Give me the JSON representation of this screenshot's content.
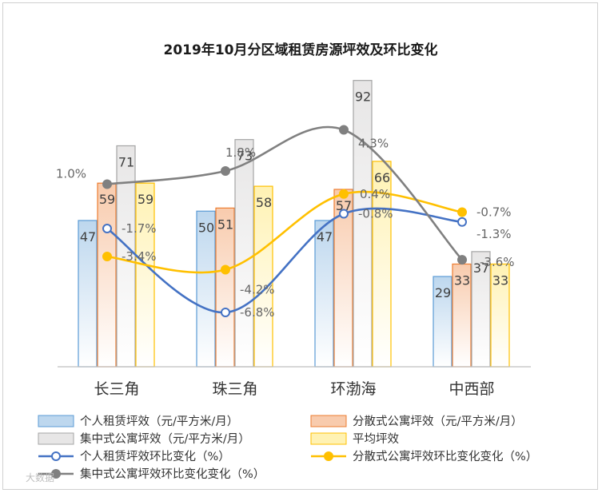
{
  "chart_data": {
    "type": "bar",
    "title": "2019年10月分区域租赁房源坪效及环比变化",
    "categories": [
      "长三角",
      "珠三角",
      "环渤海",
      "中西部"
    ],
    "ylim": [
      0,
      95
    ],
    "series": [
      {
        "name": "个人租赁坪效（元/平方米/月）",
        "kind": "bar",
        "values": [
          47,
          50,
          47,
          29
        ],
        "labels": [
          "47",
          "50",
          "47",
          "29"
        ],
        "fill": "#bdd7ee",
        "stroke": "#5b9bd5"
      },
      {
        "name": "分散式公寓坪效（元/平方米/月）",
        "kind": "bar",
        "values": [
          59,
          51,
          57,
          33
        ],
        "labels": [
          "59",
          "51",
          "57",
          "33"
        ],
        "fill": "#f8cbad",
        "stroke": "#ed7d31"
      },
      {
        "name": "集中式公寓坪效（元/平方米/月）",
        "kind": "bar",
        "values": [
          71,
          73,
          92,
          37
        ],
        "labels": [
          "71",
          "73",
          "92",
          "37"
        ],
        "fill": "#e7e6e6",
        "stroke": "#a5a5a5"
      },
      {
        "name": "平均坪效",
        "kind": "bar",
        "values": [
          59,
          58,
          66,
          33
        ],
        "labels": [
          "59",
          "58",
          "66",
          "33"
        ],
        "fill": "#fff2b3",
        "stroke": "#ffc000"
      }
    ],
    "line_series": [
      {
        "name": "个人租赁坪效环比变化（%）",
        "values": [
          -1.7,
          -6.8,
          -0.8,
          -1.3
        ],
        "labels": [
          "-1.7%",
          "-6.8%",
          "-0.8%",
          "-1.3%"
        ],
        "color": "#4472c4"
      },
      {
        "name": "分散式公寓坪效环比变化变化（%）",
        "values": [
          -3.4,
          -4.2,
          0.4,
          -0.7
        ],
        "labels": [
          "-3.4%",
          "-4.2%",
          "0.4%",
          "-0.7%"
        ],
        "color": "#ffc000"
      },
      {
        "name": "集中式公寓坪效环比变化变化（%）",
        "values": [
          1.0,
          1.8,
          4.3,
          -3.6
        ],
        "labels": [
          "1.0%",
          "1.8%",
          "4.3%",
          "-3.6%"
        ],
        "color": "#808080"
      }
    ],
    "secondary_axis": {
      "ylim": [
        -8.5,
        5.2
      ],
      "visible": false
    },
    "legend": {
      "placement": "bottom",
      "columns": 2
    },
    "watermark": "大数据"
  }
}
